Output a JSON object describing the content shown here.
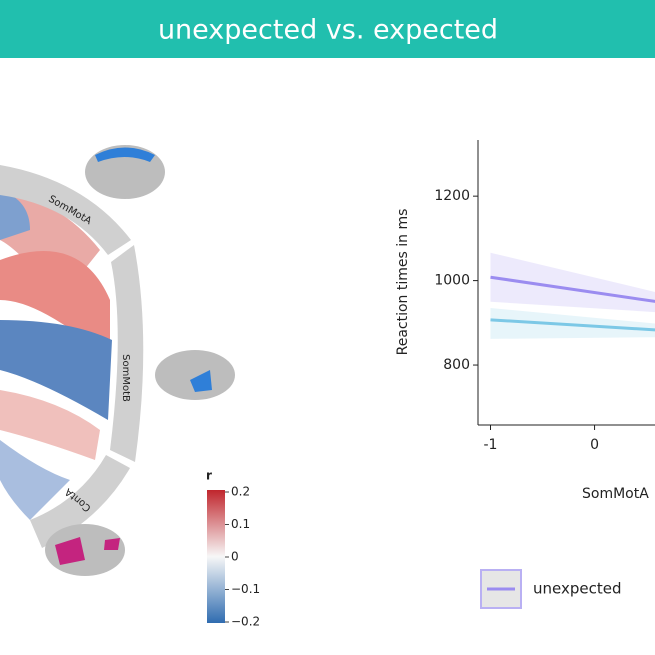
{
  "header": {
    "title": "unexpected vs. expected"
  },
  "chord": {
    "segments": [
      "SomMotA",
      "SomMotB",
      "ContA"
    ]
  },
  "colorbar": {
    "title": "r",
    "ticks": [
      0.2,
      0.1,
      0,
      {
        "value": -0.1,
        "label": "−0.1"
      },
      {
        "value": -0.2,
        "label": "−0.2"
      }
    ],
    "lim": [
      -0.2,
      0.2
    ]
  },
  "chart_data": {
    "type": "line",
    "ylabel": "Reaction times in ms",
    "xlabel": "SomMotA",
    "x": [
      -1,
      0.6
    ],
    "series": [
      {
        "name": "unexpected",
        "color": "#9b8cf0",
        "values": [
          1008,
          950
        ],
        "upper": [
          1066,
          972
        ],
        "lower": [
          950,
          925
        ]
      },
      {
        "color": "#7cc8e6",
        "values": [
          907,
          883
        ],
        "upper": [
          935,
          898
        ],
        "lower": [
          862,
          866
        ]
      }
    ],
    "xlim": [
      -1.12,
      0.6
    ],
    "xticks": [
      -1,
      0
    ],
    "ylim": [
      658,
      1333
    ],
    "yticks": [
      800,
      1000,
      1200
    ],
    "legend": "bottom"
  }
}
